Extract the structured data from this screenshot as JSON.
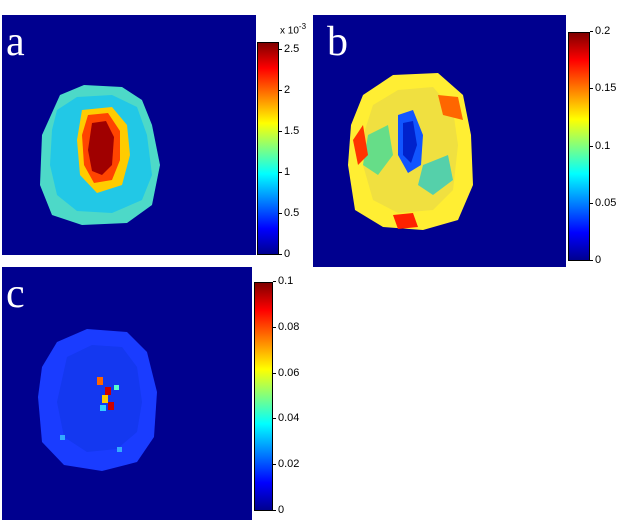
{
  "panels": [
    {
      "id": "a",
      "label": "a",
      "exponent": "x 10",
      "exponent_power": "-3",
      "ticks": [
        "0",
        "0.5",
        "1",
        "1.5",
        "2",
        "2.5"
      ],
      "tick_values": [
        0,
        0.5,
        1,
        1.5,
        2,
        2.5
      ],
      "cmax": 2.6
    },
    {
      "id": "b",
      "label": "b",
      "ticks": [
        "0",
        "0.05",
        "0.1",
        "0.15",
        "0.2"
      ],
      "tick_values": [
        0,
        0.05,
        0.1,
        0.15,
        0.2
      ],
      "cmax": 0.2
    },
    {
      "id": "c",
      "label": "c",
      "ticks": [
        "0",
        "0.02",
        "0.04",
        "0.06",
        "0.08",
        "0.1"
      ],
      "tick_values": [
        0,
        0.02,
        0.04,
        0.06,
        0.08,
        0.1
      ],
      "cmax": 0.1
    }
  ],
  "colors": {
    "background": "#00008f",
    "colormap": "jet"
  }
}
